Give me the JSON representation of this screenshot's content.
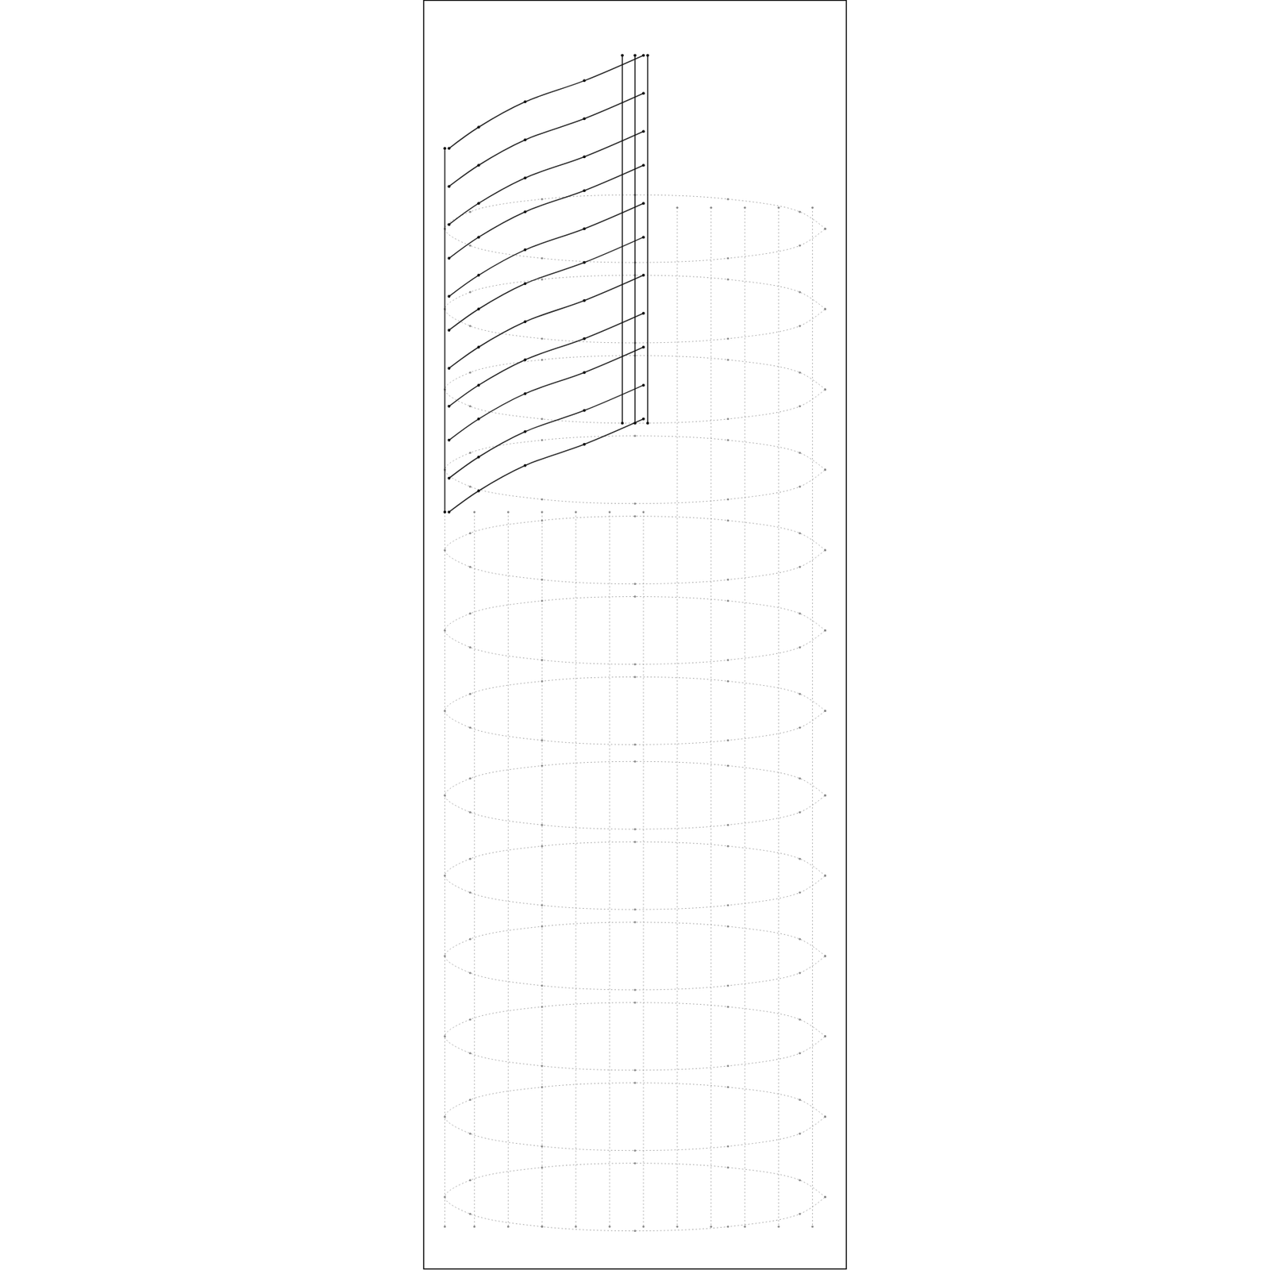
{
  "chart_data": {
    "type": "line",
    "tick_labels": false,
    "xlim": [
      0,
      100
    ],
    "ylim": [
      0,
      300
    ],
    "series": [
      {
        "color": "#8a8a8a",
        "x": [
          95,
          89,
          72,
          50,
          28,
          11,
          5,
          11,
          28,
          50,
          72,
          89,
          95
        ],
        "values": [
          246,
          250,
          253,
          254,
          253,
          250,
          246,
          242,
          239,
          238,
          239,
          242,
          246
        ]
      },
      {
        "color": "#8a8a8a",
        "x": [
          95,
          89,
          72,
          50,
          28,
          11,
          5,
          11,
          28,
          50,
          72,
          89,
          95
        ],
        "values": [
          227,
          231,
          234,
          235,
          234,
          231,
          227,
          223,
          220,
          219,
          220,
          223,
          227
        ]
      },
      {
        "color": "#8a8a8a",
        "x": [
          95,
          89,
          72,
          50,
          28,
          11,
          5,
          11,
          28,
          50,
          72,
          89,
          95
        ],
        "values": [
          208,
          212,
          215,
          216,
          215,
          212,
          208,
          204,
          201,
          200,
          201,
          204,
          208
        ]
      },
      {
        "color": "#8a8a8a",
        "x": [
          95,
          89,
          72,
          50,
          28,
          11,
          5,
          11,
          28,
          50,
          72,
          89,
          95
        ],
        "values": [
          189,
          193,
          196,
          197,
          196,
          193,
          189,
          185,
          182,
          181,
          182,
          185,
          189
        ]
      },
      {
        "color": "#8a8a8a",
        "x": [
          95,
          89,
          72,
          50,
          28,
          11,
          5,
          11,
          28,
          50,
          72,
          89,
          95
        ],
        "values": [
          170,
          174,
          177,
          178,
          177,
          174,
          170,
          166,
          163,
          162,
          163,
          166,
          170
        ]
      },
      {
        "color": "#8a8a8a",
        "x": [
          95,
          89,
          72,
          50,
          28,
          11,
          5,
          11,
          28,
          50,
          72,
          89,
          95
        ],
        "values": [
          151,
          155,
          158,
          159,
          158,
          155,
          151,
          147,
          144,
          143,
          144,
          147,
          151
        ]
      },
      {
        "color": "#8a8a8a",
        "x": [
          95,
          89,
          72,
          50,
          28,
          11,
          5,
          11,
          28,
          50,
          72,
          89,
          95
        ],
        "values": [
          132,
          136,
          139,
          140,
          139,
          136,
          132,
          128,
          125,
          124,
          125,
          128,
          132
        ]
      },
      {
        "color": "#8a8a8a",
        "x": [
          95,
          89,
          72,
          50,
          28,
          11,
          5,
          11,
          28,
          50,
          72,
          89,
          95
        ],
        "values": [
          112,
          116,
          119,
          120,
          119,
          116,
          112,
          108,
          105,
          104,
          105,
          108,
          112
        ]
      },
      {
        "color": "#8a8a8a",
        "x": [
          95,
          89,
          72,
          50,
          28,
          11,
          5,
          11,
          28,
          50,
          72,
          89,
          95
        ],
        "values": [
          93,
          97,
          100,
          101,
          100,
          97,
          93,
          89,
          86,
          85,
          86,
          89,
          93
        ]
      },
      {
        "color": "#8a8a8a",
        "x": [
          95,
          89,
          72,
          50,
          28,
          11,
          5,
          11,
          28,
          50,
          72,
          89,
          95
        ],
        "values": [
          74,
          78,
          81,
          82,
          81,
          78,
          74,
          70,
          67,
          66,
          67,
          70,
          74
        ]
      },
      {
        "color": "#8a8a8a",
        "x": [
          95,
          89,
          72,
          50,
          28,
          11,
          5,
          11,
          28,
          50,
          72,
          89,
          95
        ],
        "values": [
          55,
          59,
          62,
          63,
          62,
          59,
          55,
          51,
          48,
          47,
          48,
          51,
          55
        ]
      },
      {
        "color": "#8a8a8a",
        "x": [
          95,
          89,
          72,
          50,
          28,
          11,
          5,
          11,
          28,
          50,
          72,
          89,
          95
        ],
        "values": [
          36,
          40,
          43,
          44,
          43,
          40,
          36,
          32,
          29,
          28,
          29,
          32,
          36
        ]
      },
      {
        "color": "#8a8a8a",
        "x": [
          95,
          89,
          72,
          50,
          28,
          11,
          5,
          11,
          28,
          50,
          72,
          89,
          95
        ],
        "values": [
          17,
          21,
          24,
          25,
          24,
          21,
          17,
          13,
          10,
          9,
          10,
          13,
          17
        ]
      },
      {
        "color": "#8a8a8a",
        "x": [
          5,
          5
        ],
        "values": [
          179,
          10
        ]
      },
      {
        "color": "#8a8a8a",
        "x": [
          12,
          12
        ],
        "values": [
          179,
          10
        ]
      },
      {
        "color": "#8a8a8a",
        "x": [
          20,
          20
        ],
        "values": [
          179,
          10
        ]
      },
      {
        "color": "#8a8a8a",
        "x": [
          28,
          28
        ],
        "values": [
          179,
          10
        ]
      },
      {
        "color": "#8a8a8a",
        "x": [
          36,
          36
        ],
        "values": [
          179,
          10
        ]
      },
      {
        "color": "#8a8a8a",
        "x": [
          44,
          44
        ],
        "values": [
          179,
          10
        ]
      },
      {
        "color": "#8a8a8a",
        "x": [
          52,
          52
        ],
        "values": [
          179,
          10
        ]
      },
      {
        "color": "#8a8a8a",
        "x": [
          60,
          60
        ],
        "values": [
          251,
          10
        ]
      },
      {
        "color": "#8a8a8a",
        "x": [
          68,
          68
        ],
        "values": [
          251,
          10
        ]
      },
      {
        "color": "#8a8a8a",
        "x": [
          76,
          76
        ],
        "values": [
          251,
          10
        ]
      },
      {
        "color": "#8a8a8a",
        "x": [
          84,
          84
        ],
        "values": [
          251,
          10
        ]
      },
      {
        "color": "#8a8a8a",
        "x": [
          92,
          92
        ],
        "values": [
          251,
          10
        ]
      },
      {
        "color": "#111111",
        "x": [
          52,
          38,
          24,
          13,
          6
        ],
        "values": [
          287,
          281,
          276,
          270,
          265
        ]
      },
      {
        "color": "#111111",
        "x": [
          52,
          38,
          24,
          13,
          6
        ],
        "values": [
          278,
          272,
          267,
          261,
          256
        ]
      },
      {
        "color": "#111111",
        "x": [
          52,
          38,
          24,
          13,
          6
        ],
        "values": [
          269,
          263,
          258,
          252,
          247
        ]
      },
      {
        "color": "#111111",
        "x": [
          52,
          38,
          24,
          13,
          6
        ],
        "values": [
          261,
          255,
          250,
          244,
          239
        ]
      },
      {
        "color": "#111111",
        "x": [
          52,
          38,
          24,
          13,
          6
        ],
        "values": [
          252,
          246,
          241,
          235,
          230
        ]
      },
      {
        "color": "#111111",
        "x": [
          52,
          38,
          24,
          13,
          6
        ],
        "values": [
          244,
          238,
          233,
          227,
          222
        ]
      },
      {
        "color": "#111111",
        "x": [
          52,
          38,
          24,
          13,
          6
        ],
        "values": [
          235,
          229,
          224,
          218,
          213
        ]
      },
      {
        "color": "#111111",
        "x": [
          52,
          38,
          24,
          13,
          6
        ],
        "values": [
          226,
          220,
          215,
          209,
          204
        ]
      },
      {
        "color": "#111111",
        "x": [
          52,
          38,
          24,
          13,
          6
        ],
        "values": [
          218,
          212,
          207,
          201,
          196
        ]
      },
      {
        "color": "#111111",
        "x": [
          52,
          38,
          24,
          13,
          6
        ],
        "values": [
          209,
          203,
          198,
          192,
          187
        ]
      },
      {
        "color": "#111111",
        "x": [
          52,
          38,
          24,
          13,
          6
        ],
        "values": [
          201,
          195,
          190,
          184,
          179
        ]
      },
      {
        "color": "#111111",
        "x": [
          5,
          5
        ],
        "values": [
          265,
          179
        ]
      },
      {
        "color": "#111111",
        "x": [
          47,
          47
        ],
        "values": [
          287,
          200
        ]
      },
      {
        "color": "#111111",
        "x": [
          50,
          50
        ],
        "values": [
          287,
          200
        ]
      },
      {
        "color": "#111111",
        "x": [
          53,
          53
        ],
        "values": [
          287,
          200
        ]
      }
    ]
  }
}
